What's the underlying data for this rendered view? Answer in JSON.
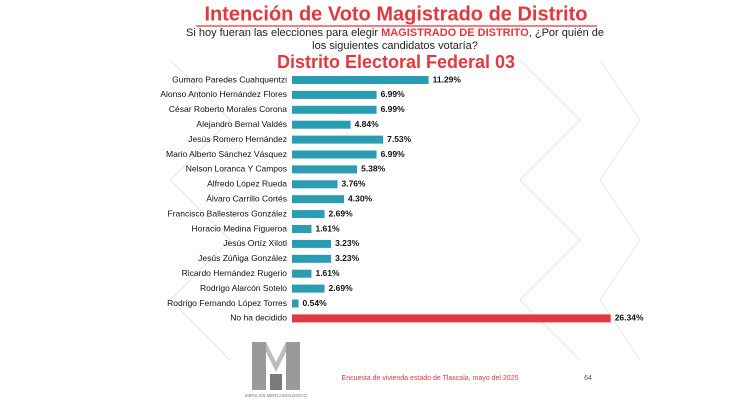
{
  "chart_data": {
    "type": "bar",
    "title": "Intención de Voto Magistrado de Distrito",
    "subtitle": [
      "Si hoy fueran las elecciones para elegir ",
      "MAGISTRADO DE DISTRITO",
      ", ¿Por quién de",
      "los siguientes candidatos votaría?"
    ],
    "heading": "Distrito Electoral Federal 03",
    "categories": [
      "Gumaro Paredes Cuahquentzi",
      "Alonso Antonio Hernández Flores",
      "César Roberto Morales Corona",
      "Alejandro Bernal Valdés",
      "Jesús Romero Hernández",
      "Mario Alberto Sánchez Vásquez",
      "Nelson Loranca Y Campos",
      "Alfredo López Rueda",
      "Álvaro Carrillo Cortés",
      "Francisco Ballesteros González",
      "Horacio Medina Figueroa",
      "Jesús Ortíz Xilotl",
      "Jesús Zúñiga González",
      "Ricardo Hernández Rugerio",
      "Rodrigo Alarcón Sotelo",
      "Rodrigo Fernando López Torres",
      "No ha decidido"
    ],
    "values": [
      11.29,
      6.99,
      6.99,
      4.84,
      7.53,
      6.99,
      5.38,
      3.76,
      4.3,
      2.69,
      1.61,
      3.23,
      3.23,
      1.61,
      2.69,
      0.54,
      26.34
    ],
    "value_labels": [
      "11.29%",
      "6.99%",
      "6.99%",
      "4.84%",
      "7.53%",
      "6.99%",
      "5.38%",
      "3.76%",
      "4.30%",
      "2.69%",
      "1.61%",
      "3.23%",
      "3.23%",
      "1.61%",
      "2.69%",
      "0.54%",
      "26.34%"
    ],
    "colors": [
      "#2a9db2",
      "#2a9db2",
      "#2a9db2",
      "#2a9db2",
      "#2a9db2",
      "#2a9db2",
      "#2a9db2",
      "#2a9db2",
      "#2a9db2",
      "#2a9db2",
      "#2a9db2",
      "#2a9db2",
      "#2a9db2",
      "#2a9db2",
      "#2a9db2",
      "#2a9db2",
      "#e2383f"
    ],
    "footer": "Encuesta de vivienda estado de Tlaxcala, mayo  del 2025",
    "page_number": "64",
    "logo_text": "IMPULSO MERCADOLÓGICO"
  }
}
